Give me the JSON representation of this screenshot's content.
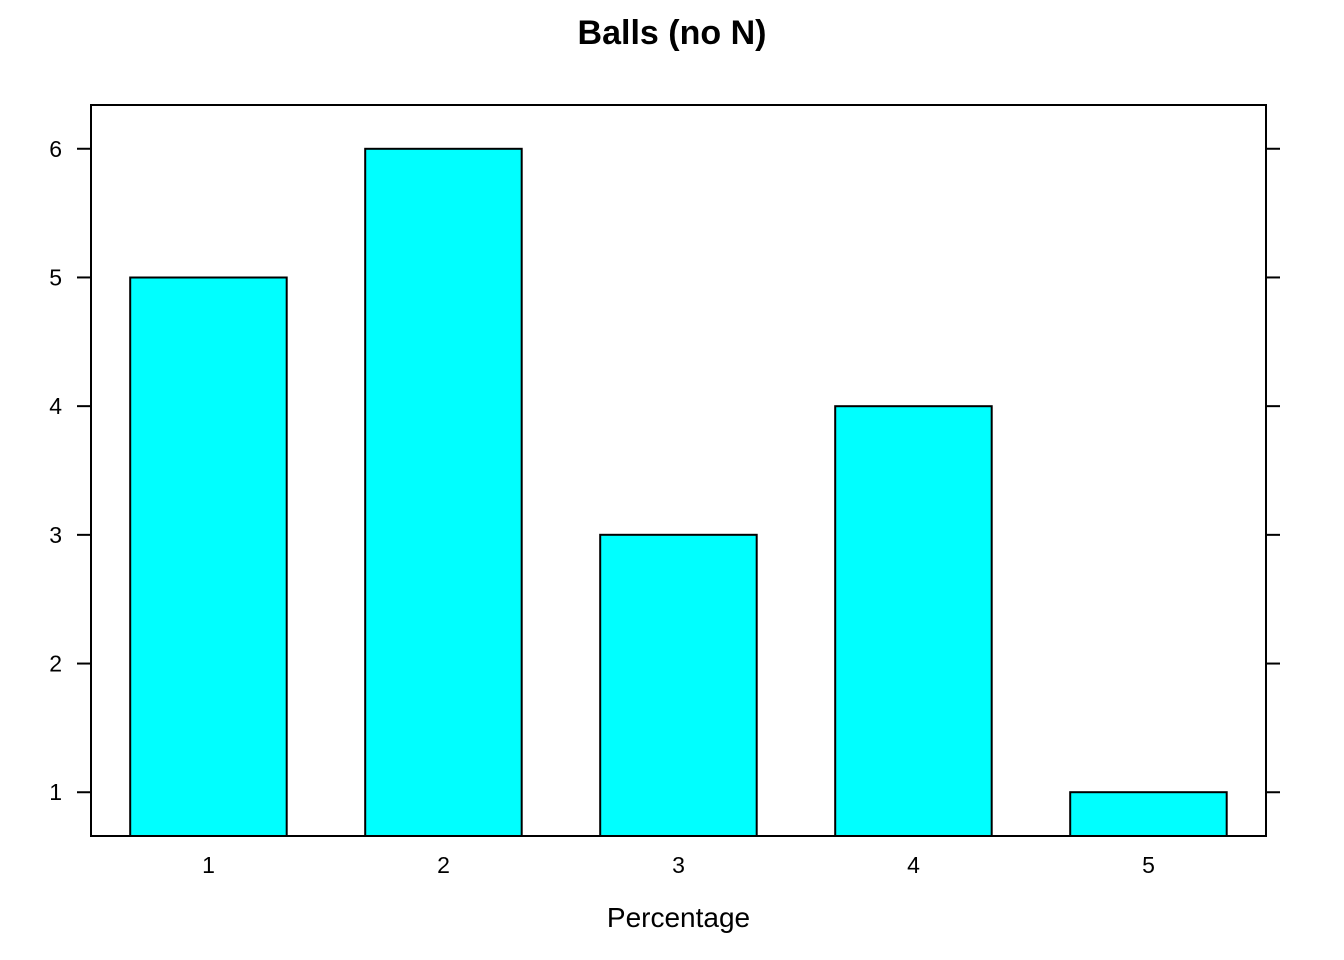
{
  "chart_data": {
    "type": "bar",
    "title": "Balls (no N)",
    "xlabel": "Percentage",
    "ylabel": "",
    "categories": [
      "1",
      "2",
      "3",
      "4",
      "5"
    ],
    "values": [
      5,
      6,
      3,
      4,
      1
    ],
    "ylim": [
      0.66,
      6.34
    ],
    "yticks": [
      "1",
      "2",
      "3",
      "4",
      "5",
      "6"
    ],
    "bar_color": "#00FFFF",
    "bar_border_color": "#000000",
    "grid": false,
    "legend": "none"
  }
}
